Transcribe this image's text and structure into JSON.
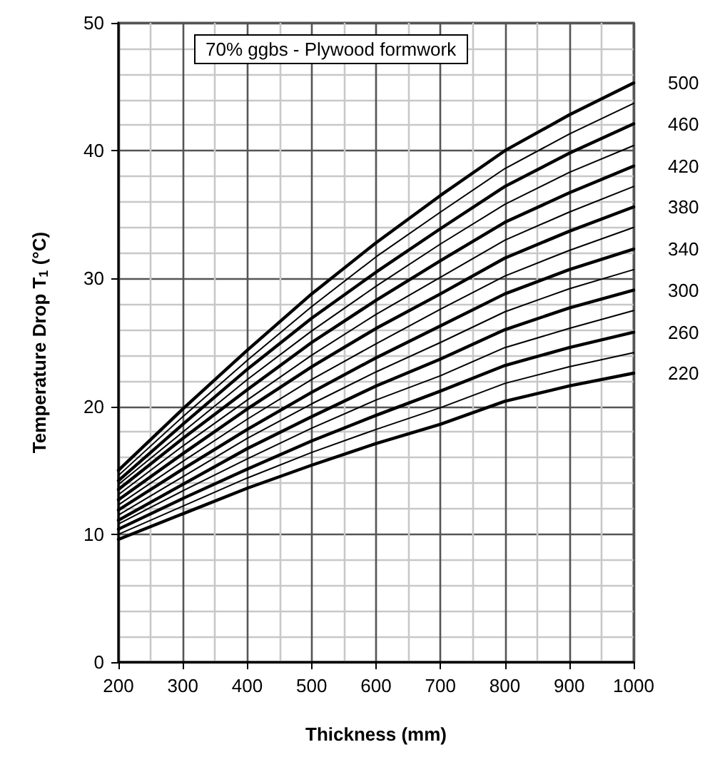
{
  "chart_data": {
    "type": "line",
    "title": "70% ggbs - Plywood formwork",
    "xlabel": "Thickness (mm)",
    "ylabel": "Temperature Drop T$_{1}$ (°C)",
    "x": [
      200,
      300,
      400,
      500,
      600,
      700,
      800,
      900,
      1000
    ],
    "series": [
      {
        "name": "220",
        "color": "#000000",
        "values": [
          9.6,
          11.6,
          13.6,
          15.4,
          17.1,
          18.6,
          20.4,
          21.6,
          22.6
        ]
      },
      {
        "color": "#000000",
        "values": [
          10.0,
          12.2,
          14.4,
          16.4,
          18.2,
          19.9,
          21.8,
          23.1,
          24.2
        ]
      },
      {
        "name": "260",
        "color": "#000000",
        "values": [
          10.4,
          12.8,
          15.1,
          17.3,
          19.3,
          21.2,
          23.2,
          24.6,
          25.8
        ]
      },
      {
        "color": "#000000",
        "values": [
          10.8,
          13.4,
          15.9,
          18.3,
          20.5,
          22.4,
          24.6,
          26.1,
          27.5
        ]
      },
      {
        "name": "300",
        "color": "#000000",
        "values": [
          11.1,
          13.9,
          16.7,
          19.2,
          21.6,
          23.7,
          26.0,
          27.7,
          29.1
        ]
      },
      {
        "color": "#000000",
        "values": [
          11.5,
          14.5,
          17.5,
          20.2,
          22.7,
          25.0,
          27.4,
          29.2,
          30.7
        ]
      },
      {
        "name": "340",
        "color": "#000000",
        "values": [
          11.9,
          15.1,
          18.2,
          21.1,
          23.8,
          26.3,
          28.8,
          30.7,
          32.3
        ]
      },
      {
        "color": "#000000",
        "values": [
          12.3,
          15.7,
          19.0,
          22.1,
          24.9,
          27.6,
          30.2,
          32.2,
          34.0
        ]
      },
      {
        "name": "380",
        "color": "#000000",
        "values": [
          12.7,
          16.3,
          19.8,
          23.1,
          26.1,
          28.8,
          31.6,
          33.7,
          35.6
        ]
      },
      {
        "color": "#000000",
        "values": [
          13.1,
          16.9,
          20.5,
          24.0,
          27.2,
          30.1,
          33.0,
          35.2,
          37.2
        ]
      },
      {
        "name": "420",
        "color": "#000000",
        "values": [
          13.5,
          17.5,
          21.3,
          25.0,
          28.3,
          31.4,
          34.4,
          36.7,
          38.8
        ]
      },
      {
        "color": "#000000",
        "values": [
          13.9,
          18.0,
          22.1,
          25.9,
          29.4,
          32.7,
          35.8,
          38.3,
          40.4
        ]
      },
      {
        "name": "460",
        "color": "#000000",
        "values": [
          14.2,
          18.6,
          22.9,
          26.9,
          30.5,
          33.9,
          37.2,
          39.8,
          42.1
        ]
      },
      {
        "color": "#000000",
        "values": [
          14.6,
          19.2,
          23.6,
          27.8,
          31.7,
          35.2,
          38.6,
          41.3,
          43.7
        ]
      },
      {
        "name": "500",
        "color": "#000000",
        "values": [
          15.0,
          19.8,
          24.4,
          28.8,
          32.8,
          36.5,
          40.0,
          42.8,
          45.3
        ]
      }
    ],
    "xlim": [
      200,
      1000
    ],
    "xticks": [
      200,
      300,
      400,
      500,
      600,
      700,
      800,
      900,
      1000
    ],
    "ylim": [
      0,
      50
    ],
    "yticks": [
      0,
      10,
      20,
      30,
      40,
      50
    ],
    "grid": true,
    "marker": "none",
    "line_style": "solid",
    "legend": false
  }
}
